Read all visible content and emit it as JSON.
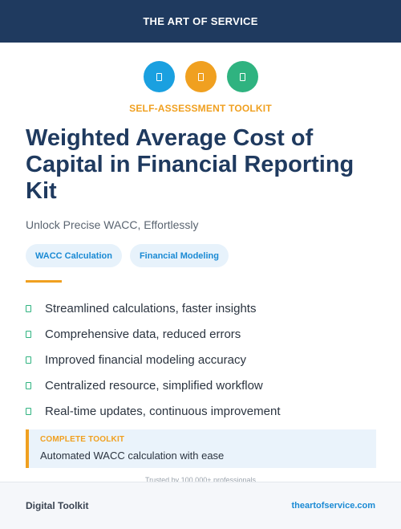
{
  "header": {
    "title": "THE ART OF SERVICE"
  },
  "icons": [
    {
      "name": "document-icon",
      "color": "#1aa0e0"
    },
    {
      "name": "document-icon",
      "color": "#f0a020"
    },
    {
      "name": "document-icon",
      "color": "#2fb380"
    }
  ],
  "eyebrow": "SELF-ASSESSMENT TOOLKIT",
  "title": "Weighted Average Cost of Capital in Financial Reporting Kit",
  "subtitle": "Unlock Precise WACC, Effortlessly",
  "tags": [
    "WACC Calculation",
    "Financial Modeling"
  ],
  "features": [
    "Streamlined calculations, faster insights",
    "Comprehensive data, reduced errors",
    "Improved financial modeling accuracy",
    "Centralized resource, simplified workflow",
    "Real-time updates, continuous improvement"
  ],
  "callout": {
    "label": "COMPLETE TOOLKIT",
    "text": "Automated WACC calculation with ease"
  },
  "trusted": "Trusted by 100,000+ professionals",
  "footer": {
    "left": "Digital Toolkit",
    "right": "theartofservice.com"
  },
  "colors": {
    "header_bg": "#1f3a5f",
    "accent_orange": "#f0a020",
    "accent_blue": "#1a8ad4",
    "accent_green": "#2fb380"
  }
}
